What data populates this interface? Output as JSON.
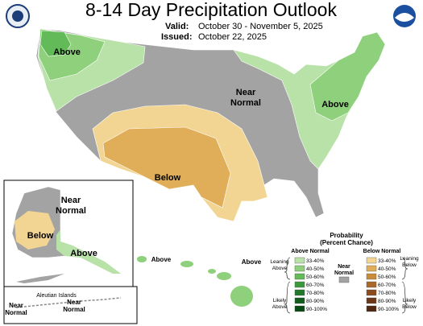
{
  "header": {
    "title": "8-14 Day Precipitation Outlook",
    "valid_label": "Valid:",
    "valid": "October 30 - November 5, 2025",
    "issued_label": "Issued:",
    "issued": "October 22, 2025"
  },
  "map": {
    "nw_label": "Above",
    "near_label": [
      "Near",
      "Normal"
    ],
    "ne_label": "Above",
    "below_label": "Below"
  },
  "alaska": {
    "near_label": [
      "Near",
      "Normal"
    ],
    "below_label": "Below",
    "above_label": "Above",
    "aleutian": "Aleutian Islands",
    "near_left": [
      "Near",
      "Normal"
    ],
    "near_right": [
      "Near",
      "Normal"
    ]
  },
  "hawaii": {
    "left_label": "Above",
    "right_label": "Above"
  },
  "legend": {
    "title": [
      "Probability",
      "(Percent Chance)"
    ],
    "above": {
      "heading": "Above Normal",
      "leaning": [
        "Leaning",
        "Above"
      ],
      "likely": [
        "Likely",
        "Above"
      ],
      "colors": [
        "#b8e2a8",
        "#8ed07c",
        "#62ba58",
        "#3a9a3b",
        "#23792b",
        "#125d1e",
        "#084a14"
      ]
    },
    "below": {
      "heading": "Below Normal",
      "leaning": [
        "Leaning",
        "Below"
      ],
      "likely": [
        "Likely",
        "Below"
      ],
      "colors": [
        "#f3d593",
        "#e0ae58",
        "#c98b3a",
        "#a9672b",
        "#8a4b1f",
        "#6b3716",
        "#4f2610"
      ]
    },
    "levels": [
      "33-40%",
      "40-50%",
      "50-60%",
      "60-70%",
      "70-80%",
      "80-90%",
      "90-100%"
    ],
    "near": [
      "Near",
      "Normal"
    ],
    "near_color": "#a3a3a3"
  }
}
